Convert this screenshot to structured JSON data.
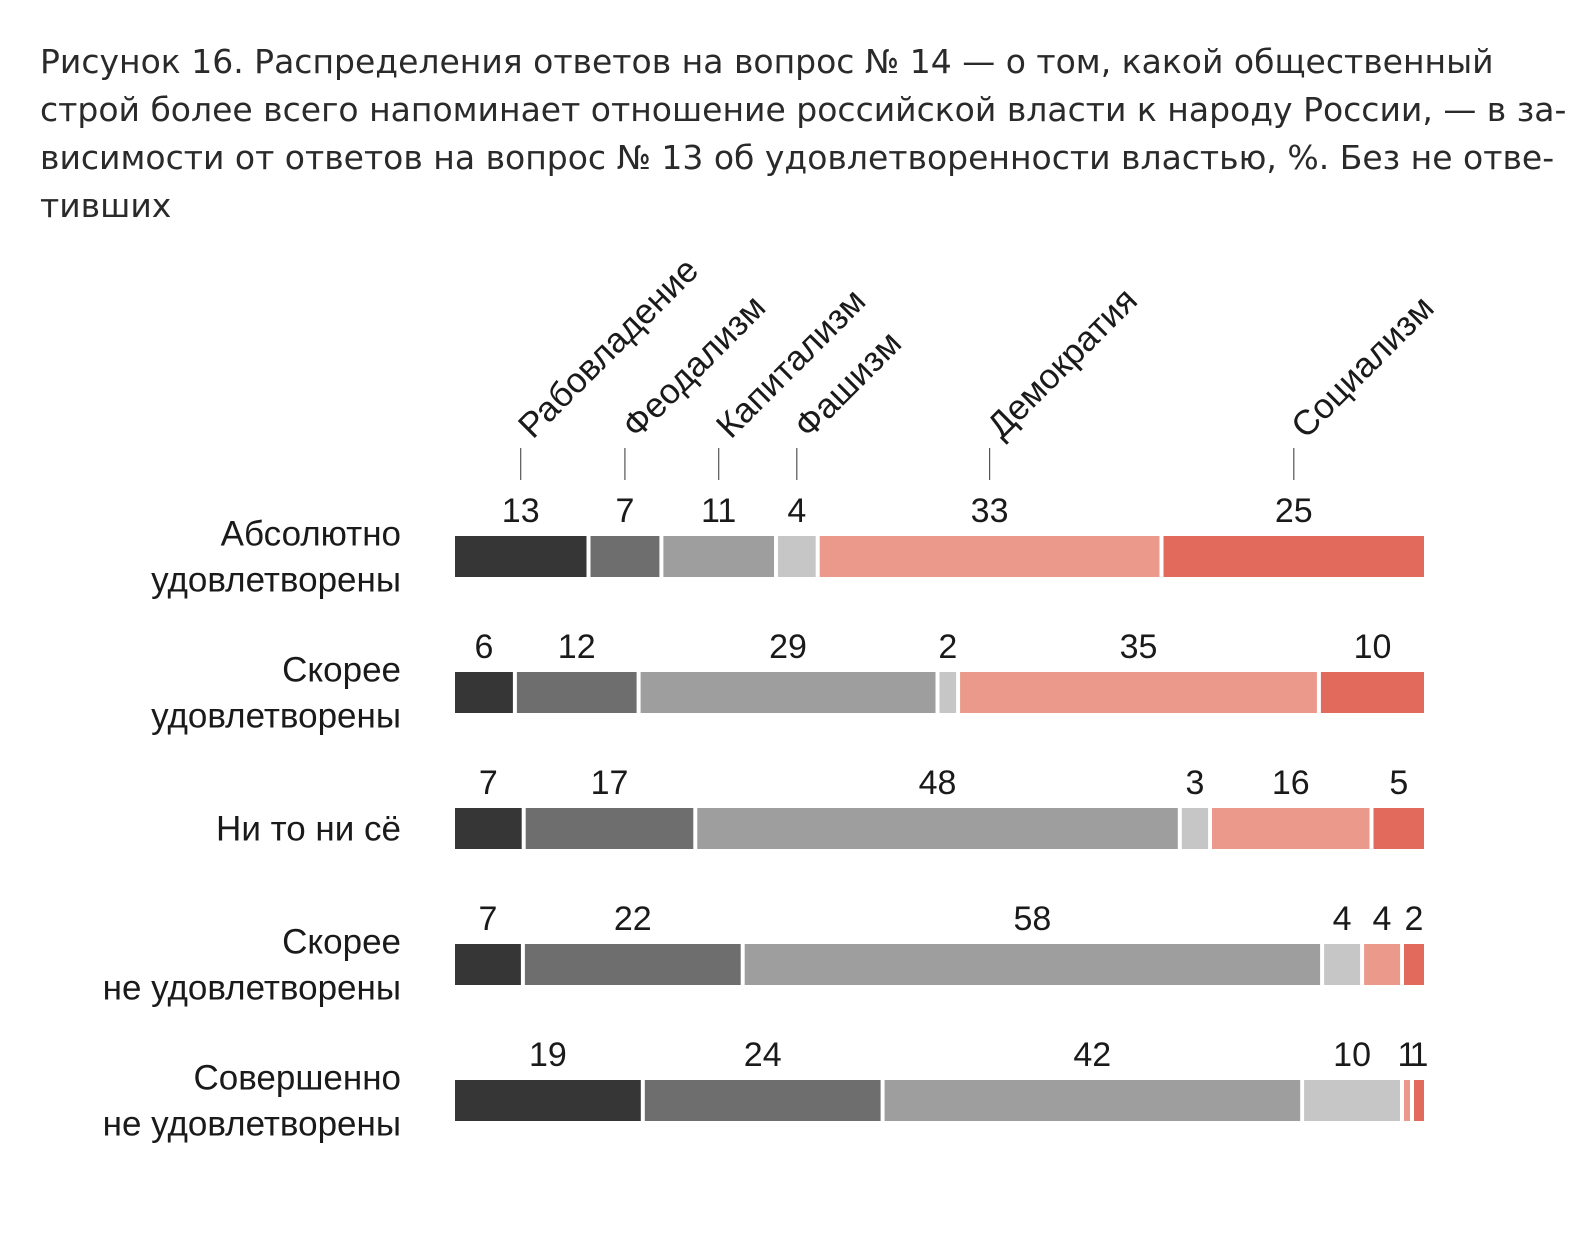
{
  "figure": {
    "title_lines": [
      "Рисунок 16. Распределения ответов на вопрос № 14 — о том, какой общественный",
      "строй более всего напоминает отношение российской власти к народу России, — в за-",
      "висимости от ответов на вопрос № 13 об удовлетворенности властью, %. Без не отве-",
      "тивших"
    ]
  },
  "chart_data": {
    "type": "bar",
    "orientation": "horizontal",
    "stacked": true,
    "unit": "%",
    "title": "Рисунок 16. Распределения ответов на вопрос № 14 — о том, какой общественный строй более всего напоминает отношение российской власти к народу России, — в зависимости от ответов на вопрос № 13 об удовлетворенности властью, %. Без не ответивших",
    "xlabel": "",
    "ylabel": "",
    "xlim": [
      0,
      100
    ],
    "grid": false,
    "legend": "category labels rotated above first bar",
    "colors": [
      "#363636",
      "#6e6e6e",
      "#9e9e9e",
      "#c6c6c6",
      "#ea998b",
      "#e26a5d"
    ],
    "segment_names": [
      "Рабовладение",
      "Феодализм",
      "Капитализм",
      "Фашизм",
      "Демократия",
      "Социализм"
    ],
    "categories": [
      [
        "Абсолютно",
        "удовлетворены"
      ],
      [
        "Скорее",
        "удовлетворены"
      ],
      [
        "Ни то ни сё"
      ],
      [
        "Скорее",
        "не удовлетворены"
      ],
      [
        "Совершенно",
        "не удовлетворены"
      ]
    ],
    "series": [
      {
        "name": "Рабовладение",
        "values": [
          13,
          6,
          7,
          7,
          19
        ]
      },
      {
        "name": "Феодализм",
        "values": [
          7,
          12,
          17,
          22,
          24
        ]
      },
      {
        "name": "Капитализм",
        "values": [
          11,
          29,
          48,
          58,
          42
        ]
      },
      {
        "name": "Фашизм",
        "values": [
          4,
          2,
          3,
          4,
          10
        ]
      },
      {
        "name": "Демократия",
        "values": [
          33,
          35,
          16,
          4,
          1
        ]
      },
      {
        "name": "Социализм",
        "values": [
          25,
          10,
          5,
          2,
          1
        ]
      }
    ]
  }
}
